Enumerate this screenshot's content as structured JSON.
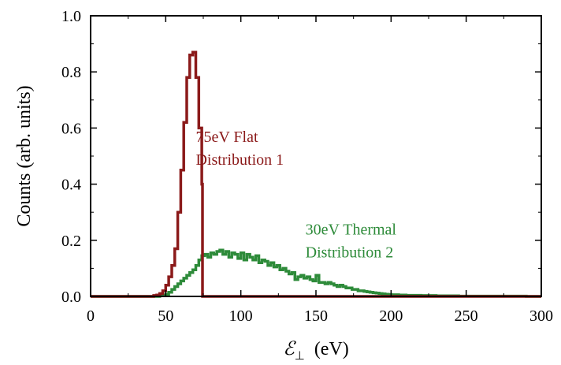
{
  "chart_data": {
    "type": "line",
    "xlabel_symbol": "ℰ",
    "xlabel_subscript": "⊥",
    "xlabel_unit": "(eV)",
    "ylabel": "Counts (arb. units)",
    "xlim": [
      0,
      300
    ],
    "ylim": [
      0,
      1.0
    ],
    "x_ticks": [
      "0",
      "50",
      "100",
      "150",
      "200",
      "250",
      "300"
    ],
    "y_ticks": [
      "0.0",
      "0.2",
      "0.4",
      "0.6",
      "0.8",
      "1.0"
    ],
    "grid": false,
    "series": [
      {
        "name": "75eV Flat Distribution 1",
        "color": "#8b1a1a",
        "style": "step",
        "x": [
          0,
          40,
          42,
          44,
          46,
          48,
          50,
          52,
          54,
          56,
          58,
          60,
          62,
          64,
          66,
          68,
          70,
          72,
          74,
          74.5,
          76,
          300
        ],
        "y": [
          0,
          0,
          0.003,
          0.005,
          0.01,
          0.02,
          0.04,
          0.07,
          0.11,
          0.17,
          0.3,
          0.45,
          0.62,
          0.78,
          0.86,
          0.87,
          0.78,
          0.6,
          0.4,
          0,
          0,
          0
        ]
      },
      {
        "name": "30eV Thermal Distribution 2",
        "color": "#2e8b3a",
        "style": "step",
        "x": [
          0,
          44,
          46,
          48,
          50,
          52,
          54,
          56,
          58,
          60,
          62,
          64,
          66,
          68,
          70,
          72,
          74,
          76,
          78,
          80,
          82,
          84,
          86,
          88,
          90,
          92,
          94,
          96,
          98,
          100,
          102,
          104,
          106,
          108,
          110,
          112,
          114,
          116,
          118,
          120,
          122,
          124,
          126,
          128,
          130,
          132,
          134,
          136,
          138,
          140,
          142,
          144,
          146,
          148,
          150,
          152,
          154,
          156,
          158,
          160,
          162,
          164,
          166,
          168,
          170,
          172,
          174,
          176,
          178,
          180,
          182,
          184,
          186,
          188,
          190,
          192,
          194,
          196,
          198,
          200,
          205,
          210,
          215,
          220,
          225,
          230,
          235,
          240,
          245,
          250,
          255,
          260,
          265,
          270,
          275,
          280,
          285,
          290,
          295,
          300
        ],
        "y": [
          0,
          0,
          0.002,
          0.004,
          0.008,
          0.015,
          0.025,
          0.035,
          0.045,
          0.055,
          0.065,
          0.075,
          0.085,
          0.095,
          0.11,
          0.13,
          0.145,
          0.15,
          0.14,
          0.155,
          0.15,
          0.16,
          0.165,
          0.15,
          0.16,
          0.14,
          0.155,
          0.15,
          0.135,
          0.155,
          0.13,
          0.15,
          0.14,
          0.13,
          0.145,
          0.12,
          0.13,
          0.125,
          0.11,
          0.12,
          0.105,
          0.11,
          0.095,
          0.1,
          0.09,
          0.08,
          0.085,
          0.06,
          0.07,
          0.075,
          0.065,
          0.07,
          0.06,
          0.055,
          0.075,
          0.05,
          0.05,
          0.045,
          0.05,
          0.045,
          0.04,
          0.035,
          0.04,
          0.035,
          0.03,
          0.03,
          0.025,
          0.025,
          0.02,
          0.02,
          0.018,
          0.016,
          0.015,
          0.013,
          0.012,
          0.01,
          0.009,
          0.008,
          0.007,
          0.006,
          0.005,
          0.004,
          0.004,
          0.003,
          0.003,
          0.002,
          0.002,
          0.002,
          0.001,
          0.001,
          0.001,
          0.001,
          0.001,
          0.001,
          0.001,
          0.001,
          0.001,
          0,
          0,
          0
        ]
      }
    ],
    "annotations": [
      {
        "lines": [
          "75eV Flat",
          "Distribution 1"
        ],
        "series": 0,
        "x": 70,
        "y": 0.55
      },
      {
        "lines": [
          "30eV Thermal",
          "Distribution 2"
        ],
        "series": 1,
        "x": 143,
        "y": 0.22
      }
    ]
  }
}
